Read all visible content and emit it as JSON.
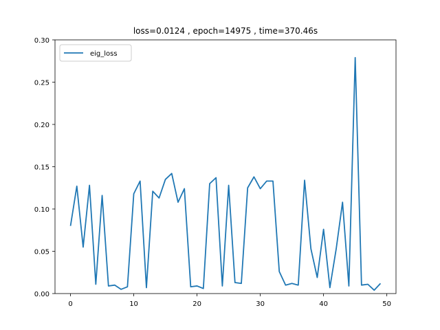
{
  "chart_data": {
    "type": "line",
    "title": "loss=0.0124 , epoch=14975 , time=370.46s",
    "xlabel": "",
    "ylabel": "",
    "xlim": [
      -2.45,
      51.45
    ],
    "ylim": [
      0,
      0.3
    ],
    "xticks": [
      0,
      10,
      20,
      30,
      40,
      50
    ],
    "xtick_labels": [
      "0",
      "10",
      "20",
      "30",
      "40",
      "50"
    ],
    "yticks": [
      0,
      0.05,
      0.1,
      0.15,
      0.2,
      0.25,
      0.3
    ],
    "ytick_labels": [
      "0.00",
      "0.05",
      "0.10",
      "0.15",
      "0.20",
      "0.25",
      "0.30"
    ],
    "grid": false,
    "legend_position": "top-left",
    "series": [
      {
        "name": "eig_loss",
        "color": "#1f77b4",
        "x": [
          0,
          1,
          2,
          3,
          4,
          5,
          6,
          7,
          8,
          9,
          10,
          11,
          12,
          13,
          14,
          15,
          16,
          17,
          18,
          19,
          20,
          21,
          22,
          23,
          24,
          25,
          26,
          27,
          28,
          29,
          30,
          31,
          32,
          33,
          34,
          35,
          36,
          37,
          38,
          39,
          40,
          41,
          42,
          43,
          44,
          45,
          46,
          47,
          48,
          49
        ],
        "values": [
          0.08,
          0.127,
          0.055,
          0.128,
          0.011,
          0.116,
          0.009,
          0.01,
          0.005,
          0.008,
          0.118,
          0.133,
          0.007,
          0.121,
          0.113,
          0.135,
          0.142,
          0.108,
          0.124,
          0.008,
          0.009,
          0.006,
          0.13,
          0.137,
          0.009,
          0.128,
          0.013,
          0.012,
          0.125,
          0.138,
          0.124,
          0.133,
          0.133,
          0.026,
          0.01,
          0.012,
          0.01,
          0.134,
          0.053,
          0.019,
          0.076,
          0.007,
          0.053,
          0.108,
          0.009,
          0.279,
          0.01,
          0.011,
          0.004,
          0.012
        ]
      }
    ]
  }
}
